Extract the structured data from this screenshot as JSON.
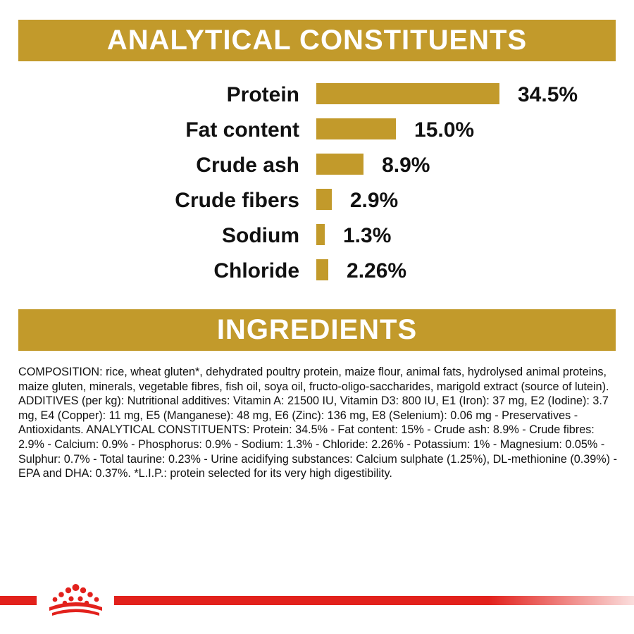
{
  "colors": {
    "gold": "#c29a2b",
    "brand_red": "#e2211c",
    "text": "#111111"
  },
  "analytical": {
    "title": "ANALYTICAL CONSTITUENTS",
    "items": [
      {
        "label": "Protein",
        "value_text": "34.5%",
        "value": 34.5
      },
      {
        "label": "Fat content",
        "value_text": "15.0%",
        "value": 15.0
      },
      {
        "label": "Crude ash",
        "value_text": "8.9%",
        "value": 8.9
      },
      {
        "label": "Crude fibers",
        "value_text": "2.9%",
        "value": 2.9
      },
      {
        "label": "Sodium",
        "value_text": "1.3%",
        "value": 1.3
      },
      {
        "label": "Chloride",
        "value_text": "2.26%",
        "value": 2.26
      }
    ]
  },
  "ingredients": {
    "title": "INGREDIENTS",
    "text": "COMPOSITION: rice, wheat gluten*, dehydrated poultry protein, maize flour, animal fats, hydrolysed animal proteins, maize gluten, minerals, vegetable fibres, fish oil, soya oil, fructo-oligo-saccharides, marigold extract (source of lutein). ADDITIVES (per kg): Nutritional additives: Vitamin A: 21500 IU, Vitamin D3: 800 IU, E1 (Iron): 37 mg, E2 (Iodine): 3.7 mg, E4 (Copper): 11 mg, E5 (Manganese): 48 mg, E6 (Zinc): 136 mg, E8 (Selenium): 0.06 mg - Preservatives - Antioxidants. ANALYTICAL CONSTITUENTS: Protein: 34.5% - Fat content: 15% - Crude ash: 8.9% - Crude fibres: 2.9% - Calcium: 0.9% - Phosphorus: 0.9% - Sodium: 1.3% - Chloride: 2.26% - Potassium: 1% - Magnesium: 0.05% - Sulphur: 0.7% - Total taurine: 0.23% - Urine acidifying substances: Calcium sulphate (1.25%), DL-methionine (0.39%) - EPA and DHA: 0.37%. *L.I.P.: protein selected for its very high digestibility."
  },
  "footer": {
    "logo_icon": "royal-canin-crown-icon"
  }
}
